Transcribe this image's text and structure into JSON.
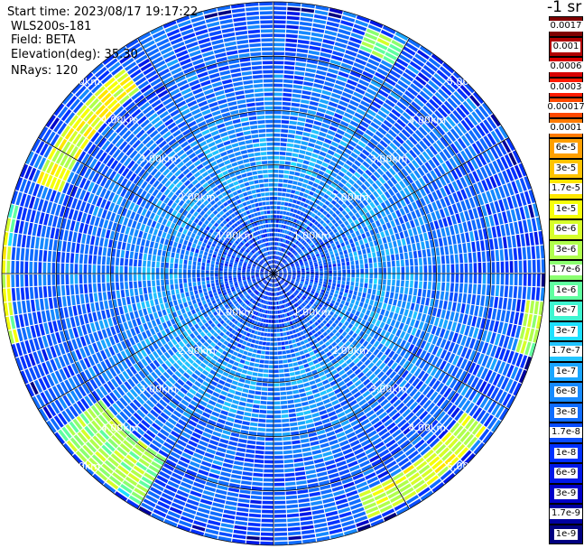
{
  "header": {
    "start_time": "Start time: 2023/08/17 19:17:22",
    "instrument": "WLS200s-181",
    "field": "Field: BETA",
    "elevation": "Elevation(deg): 35.30",
    "nrays": "NRays: 120"
  },
  "colorbar": {
    "unit_label": "-1 sr",
    "ticks": [
      "0.0017",
      "0.001",
      "0.0006",
      "0.0003",
      "0.00017",
      "0.0001",
      "6e-5",
      "3e-5",
      "1.7e-5",
      "1e-5",
      "6e-6",
      "3e-6",
      "1.7e-6",
      "1e-6",
      "6e-7",
      "3e-7",
      "1.7e-7",
      "1e-7",
      "6e-8",
      "3e-8",
      "1.7e-8",
      "1e-8",
      "6e-9",
      "3e-9",
      "1.7e-9",
      "1e-9"
    ],
    "colors": [
      "#7f0000",
      "#b00000",
      "#d80000",
      "#ff1a00",
      "#ff4800",
      "#ff7a00",
      "#ffa000",
      "#ffc400",
      "#ffe600",
      "#f5ff0a",
      "#d6ff2a",
      "#b0ff4d",
      "#8bff70",
      "#60ffa0",
      "#3ef5d0",
      "#1ee0ff",
      "#22c4ff",
      "#1aa6ff",
      "#168aff",
      "#0f6cff",
      "#0a4dff",
      "#0030ff",
      "#0018e8",
      "#0000c8",
      "#0000a0",
      "#000080"
    ]
  },
  "chart_data": {
    "type": "heatmap",
    "projection": "polar PPI (range rings and azimuth sectors)",
    "n_rays": 120,
    "elevation_deg": 35.3,
    "field": "BETA",
    "range_rings_km": [
      1.0,
      2.0,
      3.0,
      4.0,
      5.0
    ],
    "ring_labels": [
      "1.00km",
      "2.00km",
      "3.00km",
      "4.00km",
      "5.00km"
    ],
    "spoke_angles_deg": [
      0,
      30,
      60,
      90,
      120,
      150,
      180,
      210,
      240,
      270,
      300,
      330
    ],
    "max_range_km": 5.0,
    "value_scale": "log",
    "value_range": [
      1e-09,
      0.0017
    ],
    "typical_log10_by_range": [
      [
        0.0,
        -7.8
      ],
      [
        1.0,
        -7.5
      ],
      [
        2.0,
        -7.0
      ],
      [
        3.0,
        -7.3
      ],
      [
        4.0,
        -7.5
      ],
      [
        5.0,
        -7.6
      ]
    ],
    "features": [
      {
        "azimuth_deg": [
          290,
          325
        ],
        "range_km": [
          4.2,
          4.7
        ],
        "log10_beta": -5.0
      },
      {
        "azimuth_deg": [
          255,
          285
        ],
        "range_km": [
          4.8,
          5.1
        ],
        "log10_beta": -5.1
      },
      {
        "azimuth_deg": [
          210,
          235
        ],
        "range_km": [
          3.9,
          4.9
        ],
        "log10_beta": -5.5
      },
      {
        "azimuth_deg": [
          125,
          160
        ],
        "range_km": [
          4.3,
          4.8
        ],
        "log10_beta": -5.1
      },
      {
        "azimuth_deg": [
          96,
          108
        ],
        "range_km": [
          4.7,
          5.0
        ],
        "log10_beta": -5.4
      },
      {
        "azimuth_deg": [
          20,
          30
        ],
        "range_km": [
          4.4,
          4.8
        ],
        "log10_beta": -5.6
      }
    ]
  }
}
